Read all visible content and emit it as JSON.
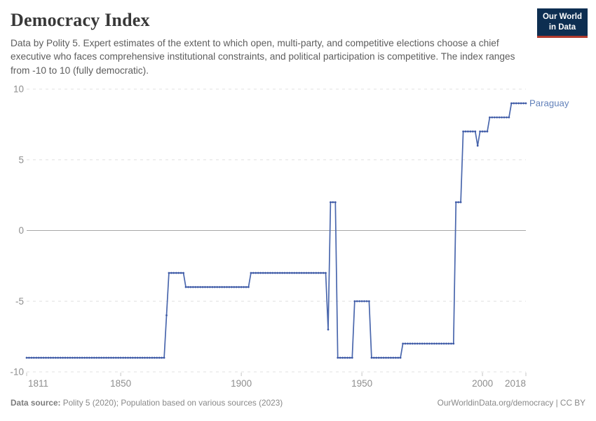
{
  "header": {
    "title": "Democracy Index",
    "subtitle": "Data by Polity 5. Expert estimates of the extent to which open, multi-party, and competitive elections choose a chief executive who faces comprehensive institutional constraints, and political participation is competitive. The index ranges from -10 to 10 (fully democratic).",
    "logo": {
      "line1": "Our World",
      "line2": "in Data",
      "bg_color": "#0d2e51",
      "accent_color": "#b13a2d"
    }
  },
  "chart_data": {
    "type": "line",
    "title": "Democracy Index",
    "entity": "Paraguay",
    "xlabel": "",
    "ylabel": "",
    "xlim": [
      1811,
      2018
    ],
    "ylim": [
      -10,
      10
    ],
    "x_ticks": [
      1811,
      1850,
      1900,
      1950,
      2000,
      2018
    ],
    "y_ticks": [
      10,
      5,
      0,
      -5,
      -10
    ],
    "grid": "horizontal-dashed, solid zero line",
    "legend_position": "end-of-line label",
    "line_color": "#4a67ad",
    "marker_color": "#3b57a5",
    "entity_label_color": "#6281ba",
    "axis_label_color": "#8e8e8e",
    "gridline_color": "#e0e0e0",
    "zero_line_color": "#a8a8a8",
    "series": [
      {
        "name": "Paraguay",
        "segments": [
          {
            "from": 1811,
            "to": 1868,
            "value": -9
          },
          {
            "from": 1869,
            "to": 1869,
            "value": -6
          },
          {
            "from": 1870,
            "to": 1876,
            "value": -3
          },
          {
            "from": 1877,
            "to": 1903,
            "value": -4
          },
          {
            "from": 1904,
            "to": 1935,
            "value": -3
          },
          {
            "from": 1936,
            "to": 1936,
            "value": -7
          },
          {
            "from": 1937,
            "to": 1939,
            "value": 2
          },
          {
            "from": 1940,
            "to": 1946,
            "value": -9
          },
          {
            "from": 1947,
            "to": 1953,
            "value": -5
          },
          {
            "from": 1954,
            "to": 1966,
            "value": -9
          },
          {
            "from": 1967,
            "to": 1988,
            "value": -8
          },
          {
            "from": 1989,
            "to": 1991,
            "value": 2
          },
          {
            "from": 1992,
            "to": 1997,
            "value": 7
          },
          {
            "from": 1998,
            "to": 1998,
            "value": 6
          },
          {
            "from": 1999,
            "to": 2002,
            "value": 7
          },
          {
            "from": 2003,
            "to": 2011,
            "value": 8
          },
          {
            "from": 2012,
            "to": 2018,
            "value": 9
          }
        ]
      }
    ]
  },
  "footer": {
    "source_label": "Data source:",
    "source_text": " Polity 5 (2020); Population based on various sources (2023)",
    "right_text": "OurWorldinData.org/democracy | CC BY"
  }
}
